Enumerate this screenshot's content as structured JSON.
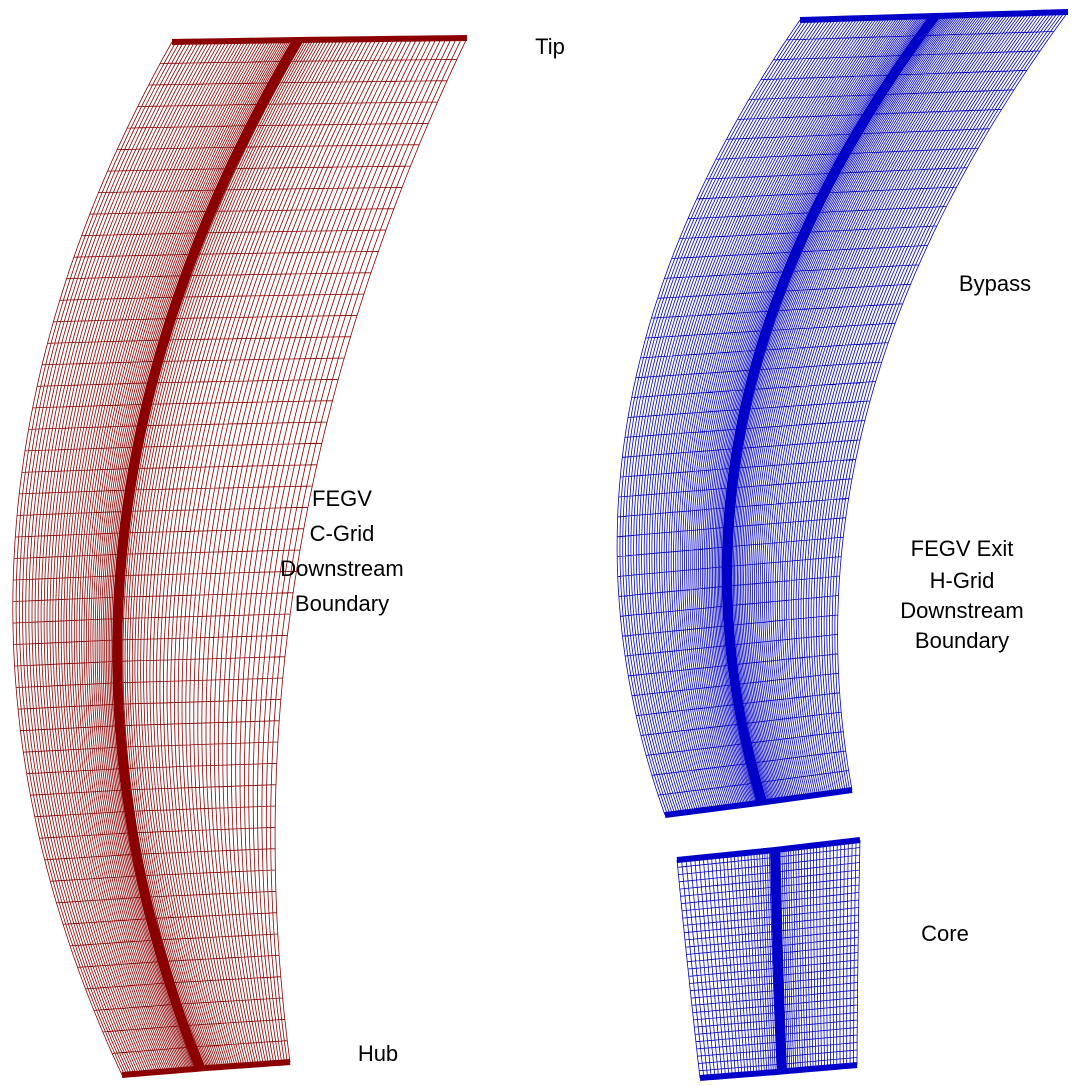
{
  "labels": {
    "tip": "Tip",
    "bypass": "Bypass",
    "c_grid": [
      "FEGV",
      "C-Grid",
      "Downstream",
      "Boundary"
    ],
    "h_grid": [
      "FEGV Exit",
      "H-Grid",
      "Downstream",
      "Boundary"
    ],
    "core": "Core",
    "hub": "Hub"
  }
}
